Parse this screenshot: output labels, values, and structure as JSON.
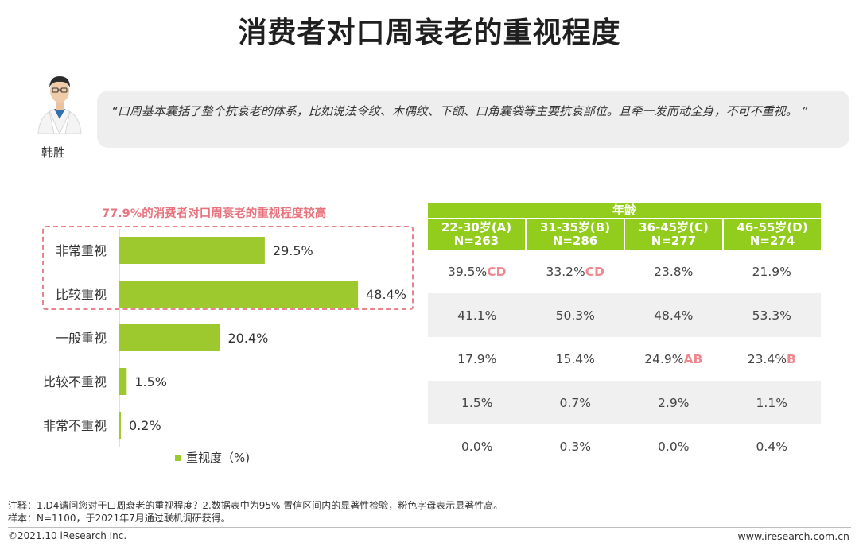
{
  "page": {
    "title": "消费者对口周衰老的重视程度",
    "person_name": "韩胜",
    "quote": "“口周基本囊括了整个抗衰老的体系，比如说法令纹、木偶纹、下颌、口角囊袋等主要抗衰部位。且牵一发而动全身，不可不重视。 ”",
    "chart_headline": "77.9%的消费者对口周衰老的重视程度较高",
    "legend_label": "重视度（%)"
  },
  "chart_data": {
    "type": "bar",
    "orientation": "horizontal",
    "categories": [
      "非常重视",
      "比较重视",
      "一般重视",
      "比较不重视",
      "非常不重视"
    ],
    "series": [
      {
        "name": "重视度（%)",
        "values": [
          29.5,
          48.4,
          20.4,
          1.5,
          0.2
        ],
        "color": "#9dc92f"
      }
    ],
    "value_labels": [
      "29.5%",
      "48.4%",
      "20.4%",
      "1.5%",
      "0.2%"
    ],
    "xlim": [
      0,
      50
    ],
    "legend_position": "bottom"
  },
  "table": {
    "group_header": "年龄",
    "columns": [
      {
        "line1": "22-30岁(A)",
        "line2": "N=263"
      },
      {
        "line1": "31-35岁(B)",
        "line2": "N=286"
      },
      {
        "line1": "36-45岁(C)",
        "line2": "N=277"
      },
      {
        "line1": "46-55岁(D)",
        "line2": "N=274"
      }
    ],
    "rows": [
      [
        {
          "v": "39.5%",
          "s": "CD"
        },
        {
          "v": "33.2%",
          "s": "CD"
        },
        {
          "v": "23.8%",
          "s": ""
        },
        {
          "v": "21.9%",
          "s": ""
        }
      ],
      [
        {
          "v": "41.1%",
          "s": ""
        },
        {
          "v": "50.3%",
          "s": ""
        },
        {
          "v": "48.4%",
          "s": ""
        },
        {
          "v": "53.3%",
          "s": ""
        }
      ],
      [
        {
          "v": "17.9%",
          "s": ""
        },
        {
          "v": "15.4%",
          "s": ""
        },
        {
          "v": "24.9%",
          "s": "AB"
        },
        {
          "v": "23.4%",
          "s": "B"
        }
      ],
      [
        {
          "v": "1.5%",
          "s": ""
        },
        {
          "v": "0.7%",
          "s": ""
        },
        {
          "v": "2.9%",
          "s": ""
        },
        {
          "v": "1.1%",
          "s": ""
        }
      ],
      [
        {
          "v": "0.0%",
          "s": ""
        },
        {
          "v": "0.3%",
          "s": ""
        },
        {
          "v": "0.0%",
          "s": ""
        },
        {
          "v": "0.4%",
          "s": ""
        }
      ]
    ]
  },
  "footer": {
    "note1": "注释：1.D4请问您对于口周衰老的重视程度？2.数据表中为95% 置信区间内的显著性检验，粉色字母表示显著性高。",
    "note2": "样本：N=1100，于2021年7月通过联机调研获得。",
    "copyright": "©2021.10 iResearch Inc.",
    "website": "www.iresearch.com.cn"
  },
  "colors": {
    "bar": "#9dc92f",
    "table_header": "#92cd1e",
    "accent_pink": "#e8737e"
  }
}
